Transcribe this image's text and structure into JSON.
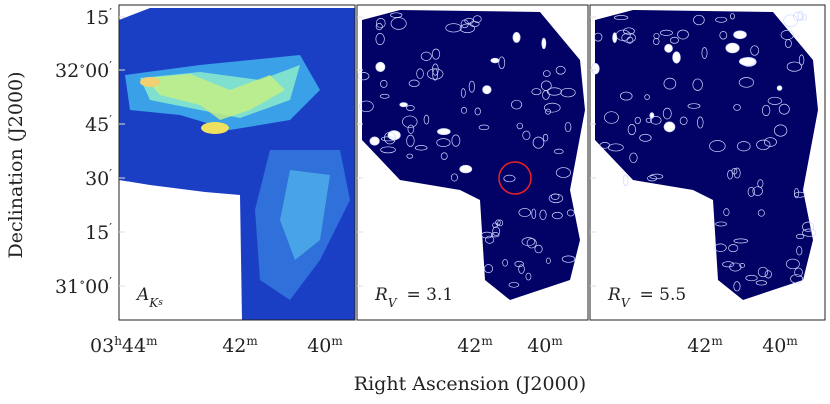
{
  "axes": {
    "x_title": "Right Ascension (J2000)",
    "y_title": "Declination (J2000)",
    "y_ticks": [
      [
        [
          "15",
          "′"
        ]
      ],
      [
        [
          "32",
          "∘"
        ],
        [
          "00",
          "′"
        ]
      ],
      [
        [
          "45",
          "′"
        ]
      ],
      [
        [
          "30",
          "′"
        ]
      ],
      [
        [
          "15",
          "′"
        ]
      ],
      [
        [
          "31",
          "∘"
        ],
        [
          "00",
          "′"
        ]
      ]
    ],
    "x_ticks": [
      [
        [
          "03",
          "h"
        ],
        [
          "44",
          "m"
        ]
      ],
      [
        [
          "42",
          "m"
        ]
      ],
      [
        [
          "40",
          "m"
        ]
      ],
      [
        [
          "42",
          "m"
        ]
      ],
      [
        [
          "40",
          "m"
        ]
      ],
      [
        [
          "42",
          "m"
        ]
      ],
      [
        [
          "40",
          "m"
        ]
      ]
    ]
  },
  "panels": [
    {
      "symbol": "A",
      "sub": "K",
      "subsub": "s"
    },
    {
      "symbol": "R",
      "sub": "V",
      "value": "= 3.1"
    },
    {
      "symbol": "R",
      "sub": "V",
      "value": "= 5.5"
    }
  ]
}
